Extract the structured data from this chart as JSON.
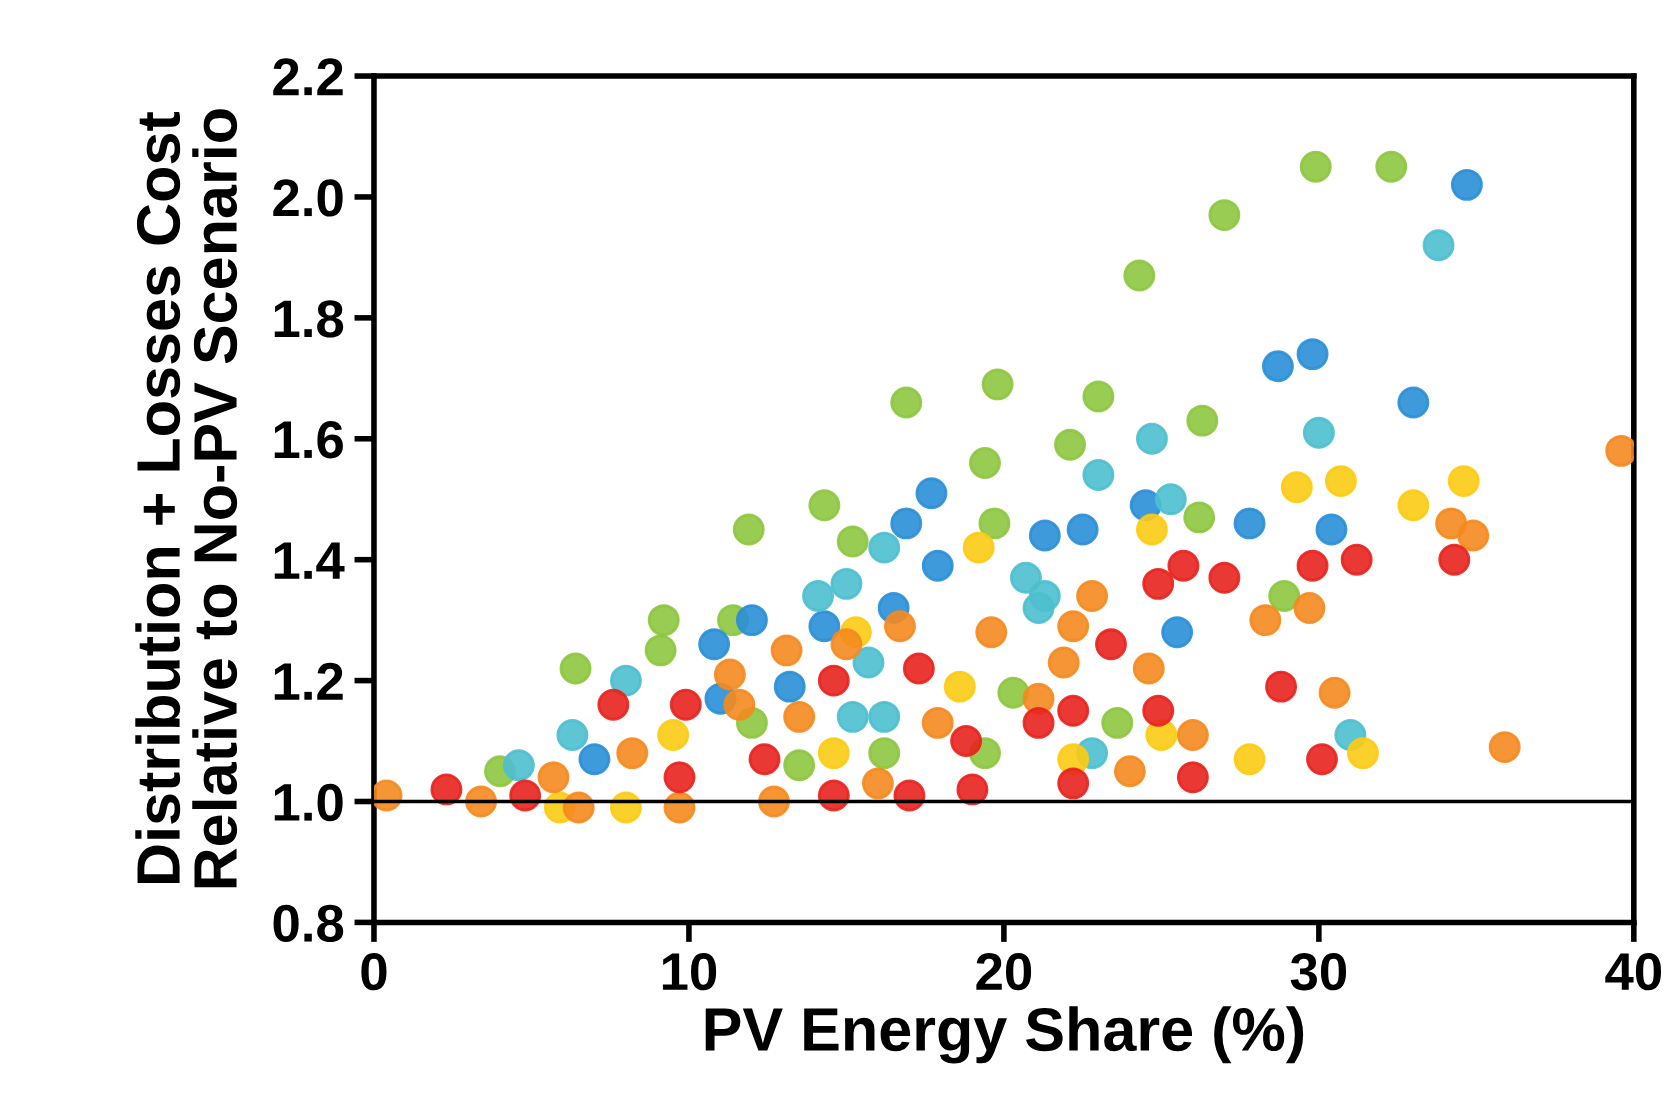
{
  "chart_data": {
    "type": "scatter",
    "xlabel": "PV Energy Share (%)",
    "ylabel": "Distribution + Losses Cost\nRelative to No-PV Scenario",
    "xlim": [
      0,
      40
    ],
    "xticks": [
      0,
      10,
      20,
      30,
      40
    ],
    "ylim": [
      0.8,
      2.2
    ],
    "yticks": [
      {
        "value": 0.8,
        "label": "0.8"
      },
      {
        "value": 1.0,
        "label": "1.0"
      },
      {
        "value": 1.2,
        "label": "1.2"
      },
      {
        "value": 1.4,
        "label": "1.4"
      },
      {
        "value": 1.6,
        "label": "1.6"
      },
      {
        "value": 1.8,
        "label": "1.8"
      },
      {
        "value": 2.0,
        "label": "2.0"
      },
      {
        "value": 2.2,
        "label": "2.2"
      }
    ],
    "grid": false,
    "legend": false,
    "marker": "circle",
    "ref_lines": [
      {
        "axis": "y",
        "value": 1.0,
        "color": "#000000"
      }
    ],
    "series": [
      {
        "color": "#8dc63f",
        "x": [
          29.9,
          32.3,
          27.0,
          24.3,
          19.8,
          23.0,
          26.3,
          22.1,
          19.4,
          26.2,
          19.7,
          28.9,
          16.2,
          19.4,
          20.3,
          23.6,
          13.5,
          6.4,
          9.1,
          9.2,
          11.4,
          12.0,
          4.0,
          16.9,
          14.3,
          11.9,
          15.2
        ],
        "values": [
          2.05,
          2.05,
          1.97,
          1.87,
          1.69,
          1.67,
          1.63,
          1.59,
          1.56,
          1.47,
          1.46,
          1.34,
          1.08,
          1.08,
          1.18,
          1.13,
          1.06,
          1.22,
          1.25,
          1.3,
          1.3,
          1.13,
          1.05,
          1.66,
          1.49,
          1.45,
          1.43
        ]
      },
      {
        "color": "#2a8fd8",
        "x": [
          34.7,
          28.7,
          29.8,
          33.0,
          27.8,
          30.4,
          21.3,
          22.5,
          24.5,
          13.2,
          16.5,
          14.3,
          25.5,
          10.8,
          12.0,
          7.0,
          11.0,
          17.7,
          16.9,
          17.9
        ],
        "values": [
          2.02,
          1.72,
          1.74,
          1.66,
          1.46,
          1.45,
          1.44,
          1.45,
          1.49,
          1.19,
          1.32,
          1.29,
          1.28,
          1.26,
          1.3,
          1.07,
          1.17,
          1.51,
          1.46,
          1.39
        ]
      },
      {
        "color": "#4dbfcf",
        "x": [
          33.8,
          30.0,
          24.7,
          23.0,
          20.7,
          21.3,
          25.3,
          31.0,
          15.2,
          16.2,
          22.8,
          15.7,
          21.1,
          6.3,
          8.0,
          4.6,
          16.2,
          15.0,
          14.1
        ],
        "values": [
          1.92,
          1.61,
          1.6,
          1.54,
          1.37,
          1.34,
          1.5,
          1.11,
          1.14,
          1.14,
          1.08,
          1.23,
          1.32,
          1.11,
          1.2,
          1.06,
          1.42,
          1.36,
          1.34
        ]
      },
      {
        "color": "#fccb14",
        "x": [
          29.3,
          30.7,
          34.6,
          33.0,
          19.2,
          24.7,
          31.4,
          27.8,
          25.0,
          14.6,
          22.2,
          15.3,
          18.6,
          5.9,
          9.5,
          8.0
        ],
        "values": [
          1.52,
          1.53,
          1.53,
          1.49,
          1.42,
          1.45,
          1.08,
          1.07,
          1.11,
          1.08,
          1.07,
          1.28,
          1.19,
          0.99,
          1.11,
          0.99
        ]
      },
      {
        "color": "#f58a1f",
        "x": [
          39.6,
          34.2,
          34.9,
          22.8,
          28.3,
          29.7,
          30.5,
          35.9,
          26.0,
          13.1,
          15.0,
          16.7,
          19.6,
          22.2,
          24.6,
          13.5,
          17.9,
          21.1,
          16.0,
          24.0,
          12.7,
          21.9,
          0.4,
          3.4,
          5.7,
          8.2,
          11.3,
          6.5,
          9.7,
          11.6
        ],
        "values": [
          1.58,
          1.46,
          1.44,
          1.34,
          1.3,
          1.32,
          1.18,
          1.09,
          1.11,
          1.25,
          1.26,
          1.29,
          1.28,
          1.29,
          1.22,
          1.14,
          1.13,
          1.17,
          1.03,
          1.05,
          1.0,
          1.23,
          1.01,
          1.0,
          1.04,
          1.08,
          1.21,
          0.99,
          0.99,
          1.16
        ]
      },
      {
        "color": "#e8241e",
        "x": [
          34.3,
          31.2,
          29.8,
          25.7,
          27.0,
          24.9,
          28.8,
          30.1,
          26.0,
          24.9,
          17.3,
          14.6,
          18.8,
          21.1,
          22.2,
          14.6,
          17.0,
          19.0,
          22.2,
          12.4,
          23.4,
          2.3,
          4.8,
          7.6,
          9.9,
          9.7
        ],
        "values": [
          1.4,
          1.4,
          1.39,
          1.39,
          1.37,
          1.36,
          1.19,
          1.07,
          1.04,
          1.15,
          1.22,
          1.2,
          1.1,
          1.13,
          1.15,
          1.01,
          1.01,
          1.02,
          1.03,
          1.07,
          1.26,
          1.02,
          1.01,
          1.16,
          1.16,
          1.04
        ]
      }
    ]
  }
}
